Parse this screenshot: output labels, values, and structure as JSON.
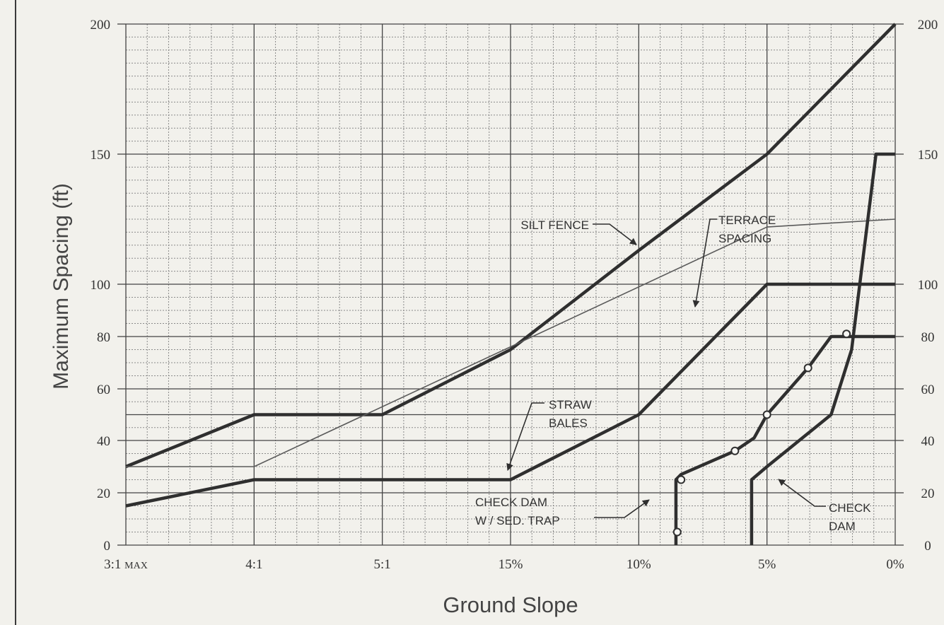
{
  "chart_data": {
    "type": "line",
    "title": "",
    "xlabel": "Ground Slope",
    "ylabel": "Maximum Spacing (ft)",
    "x_ticks": [
      "3:1 MAX",
      "4:1",
      "5:1",
      "15%",
      "10%",
      "5%",
      "0%"
    ],
    "x_tick_positions": [
      0,
      1,
      2,
      3,
      4,
      5,
      6
    ],
    "y_ticks_left": [
      "0",
      "20",
      "40",
      "60",
      "80",
      "100",
      "150",
      "200"
    ],
    "y_ticks_right": [
      "0",
      "20",
      "40",
      "60",
      "80",
      "100",
      "150",
      "200"
    ],
    "y_tick_values": [
      0,
      20,
      40,
      60,
      80,
      100,
      150,
      200
    ],
    "ylim": [
      0,
      200
    ],
    "xlim": [
      0,
      6
    ],
    "y_major_lines": [
      0,
      20,
      40,
      60,
      80,
      100,
      150,
      200
    ],
    "grid": true,
    "series": [
      {
        "style": "thick",
        "x": [
          0,
          1,
          2,
          3,
          4,
          5,
          6
        ],
        "y": [
          30,
          50,
          50,
          75,
          113,
          150,
          200
        ]
      },
      {
        "style": "thin",
        "x": [
          0,
          1,
          5,
          6
        ],
        "y": [
          30,
          30,
          122,
          125
        ]
      },
      {
        "style": "thick",
        "x": [
          0,
          1,
          3,
          4,
          5,
          6
        ],
        "y": [
          15,
          25,
          25,
          50,
          100,
          100
        ]
      },
      {
        "style": "thick",
        "markers": [
          {
            "x": 4.3,
            "y": 5
          },
          {
            "x": 4.33,
            "y": 25
          },
          {
            "x": 4.75,
            "y": 36
          },
          {
            "x": 5,
            "y": 50
          },
          {
            "x": 5.32,
            "y": 68
          },
          {
            "x": 5.62,
            "y": 81
          }
        ],
        "x": [
          4.29,
          4.29,
          4.33,
          4.75,
          4.9,
          5.0,
          5.32,
          5.5,
          6.0
        ],
        "y": [
          0,
          25,
          27,
          36,
          41,
          50,
          68,
          80,
          80
        ]
      },
      {
        "style": "thick",
        "x": [
          4.88,
          4.88,
          5.0,
          5.5,
          5.66,
          5.85,
          6.0
        ],
        "y": [
          0,
          25,
          30,
          50,
          75,
          150,
          150
        ]
      }
    ],
    "annotations": [
      {
        "lines": [
          "SILT FENCE"
        ],
        "anchor": "end"
      },
      {
        "lines": [
          "TERRACE",
          "SPACING"
        ],
        "anchor": "start"
      },
      {
        "lines": [
          "STRAW",
          "BALES"
        ],
        "anchor": "start"
      },
      {
        "lines": [
          "CHECK DAM",
          "W / SED. TRAP"
        ],
        "anchor": "start"
      },
      {
        "lines": [
          "CHECK",
          "DAM"
        ],
        "anchor": "start"
      }
    ],
    "colors": {
      "background": "#f2f1ec",
      "grid_major": "#444444",
      "grid_minor": "#8a8a8a",
      "thick_line": "#2f2f2f",
      "thin_line": "#5a5a5a",
      "text": "#333333"
    }
  }
}
